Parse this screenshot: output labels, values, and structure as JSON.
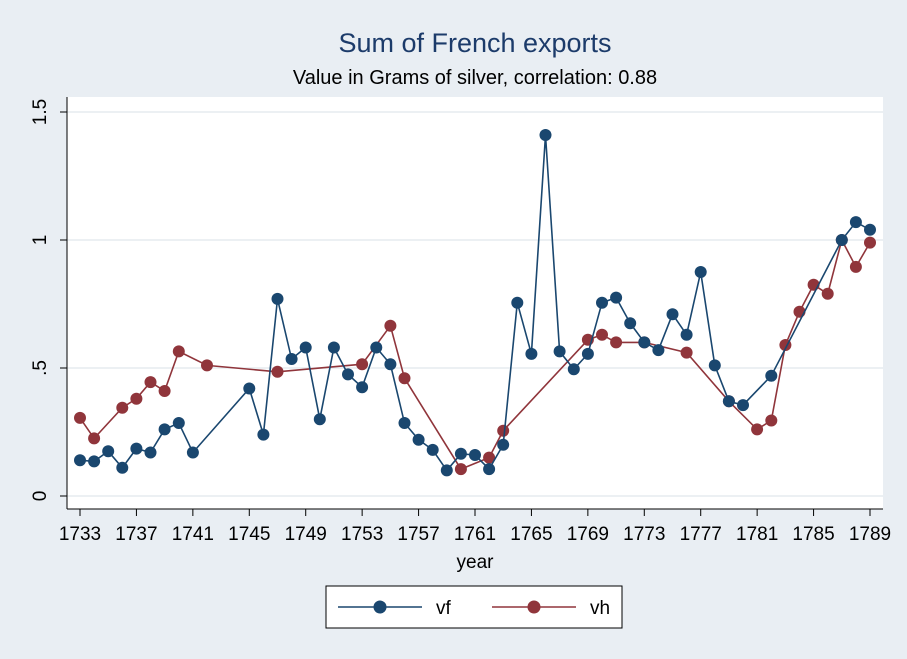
{
  "chart_data": {
    "type": "line",
    "title": "Sum of French exports",
    "subtitle": "Value in Grams of silver, correlation: 0.88",
    "xlabel": "year",
    "ylabel": "",
    "xlim": [
      1733,
      1789
    ],
    "ylim": [
      0,
      1.5
    ],
    "x_ticks": [
      1733,
      1737,
      1741,
      1745,
      1749,
      1753,
      1757,
      1761,
      1765,
      1769,
      1773,
      1777,
      1781,
      1785,
      1789
    ],
    "x_tick_labels": [
      "1733",
      "1737",
      "1741",
      "1745",
      "1749",
      "1753",
      "1757",
      "1761",
      "1765",
      "1769",
      "1773",
      "1777",
      "1781",
      "1785",
      "1789"
    ],
    "y_ticks": [
      0,
      0.5,
      1,
      1.5
    ],
    "y_tick_labels": [
      "0",
      ".5",
      "1",
      "1.5"
    ],
    "grid": true,
    "legend_position": "bottom",
    "series": [
      {
        "name": "vf",
        "color": "#1a476f",
        "points": [
          [
            1733,
            0.14
          ],
          [
            1734,
            0.135
          ],
          [
            1735,
            0.175
          ],
          [
            1736,
            0.11
          ],
          [
            1737,
            0.185
          ],
          [
            1738,
            0.17
          ],
          [
            1739,
            0.26
          ],
          [
            1740,
            0.285
          ],
          [
            1741,
            0.17
          ],
          [
            1745,
            0.42
          ],
          [
            1746,
            0.24
          ],
          [
            1747,
            0.77
          ],
          [
            1748,
            0.535
          ],
          [
            1749,
            0.58
          ],
          [
            1750,
            0.3
          ],
          [
            1751,
            0.58
          ],
          [
            1752,
            0.475
          ],
          [
            1753,
            0.425
          ],
          [
            1754,
            0.58
          ],
          [
            1755,
            0.515
          ],
          [
            1756,
            0.285
          ],
          [
            1757,
            0.22
          ],
          [
            1758,
            0.18
          ],
          [
            1759,
            0.1
          ],
          [
            1760,
            0.165
          ],
          [
            1761,
            0.16
          ],
          [
            1762,
            0.105
          ],
          [
            1763,
            0.2
          ],
          [
            1764,
            0.755
          ],
          [
            1765,
            0.555
          ],
          [
            1766,
            1.41
          ],
          [
            1767,
            0.565
          ],
          [
            1768,
            0.495
          ],
          [
            1769,
            0.555
          ],
          [
            1770,
            0.755
          ],
          [
            1771,
            0.775
          ],
          [
            1772,
            0.675
          ],
          [
            1773,
            0.6
          ],
          [
            1774,
            0.57
          ],
          [
            1775,
            0.71
          ],
          [
            1776,
            0.63
          ],
          [
            1777,
            0.875
          ],
          [
            1778,
            0.51
          ],
          [
            1779,
            0.37
          ],
          [
            1780,
            0.355
          ],
          [
            1782,
            0.47
          ],
          [
            1787,
            1.0
          ],
          [
            1788,
            1.07
          ],
          [
            1789,
            1.04
          ]
        ]
      },
      {
        "name": "vh",
        "color": "#90353b",
        "points": [
          [
            1733,
            0.305
          ],
          [
            1734,
            0.225
          ],
          [
            1736,
            0.345
          ],
          [
            1737,
            0.38
          ],
          [
            1738,
            0.445
          ],
          [
            1739,
            0.41
          ],
          [
            1740,
            0.565
          ],
          [
            1742,
            0.51
          ],
          [
            1747,
            0.485
          ],
          [
            1753,
            0.515
          ],
          [
            1755,
            0.665
          ],
          [
            1756,
            0.46
          ],
          [
            1760,
            0.105
          ],
          [
            1762,
            0.15
          ],
          [
            1763,
            0.255
          ],
          [
            1769,
            0.61
          ],
          [
            1770,
            0.63
          ],
          [
            1771,
            0.6
          ],
          [
            1773,
            0.6
          ],
          [
            1776,
            0.56
          ],
          [
            1779,
            0.37
          ],
          [
            1781,
            0.26
          ],
          [
            1782,
            0.295
          ],
          [
            1783,
            0.59
          ],
          [
            1784,
            0.72
          ],
          [
            1785,
            0.825
          ],
          [
            1786,
            0.79
          ],
          [
            1787,
            1.0
          ],
          [
            1788,
            0.895
          ],
          [
            1789,
            0.99
          ]
        ]
      }
    ]
  }
}
